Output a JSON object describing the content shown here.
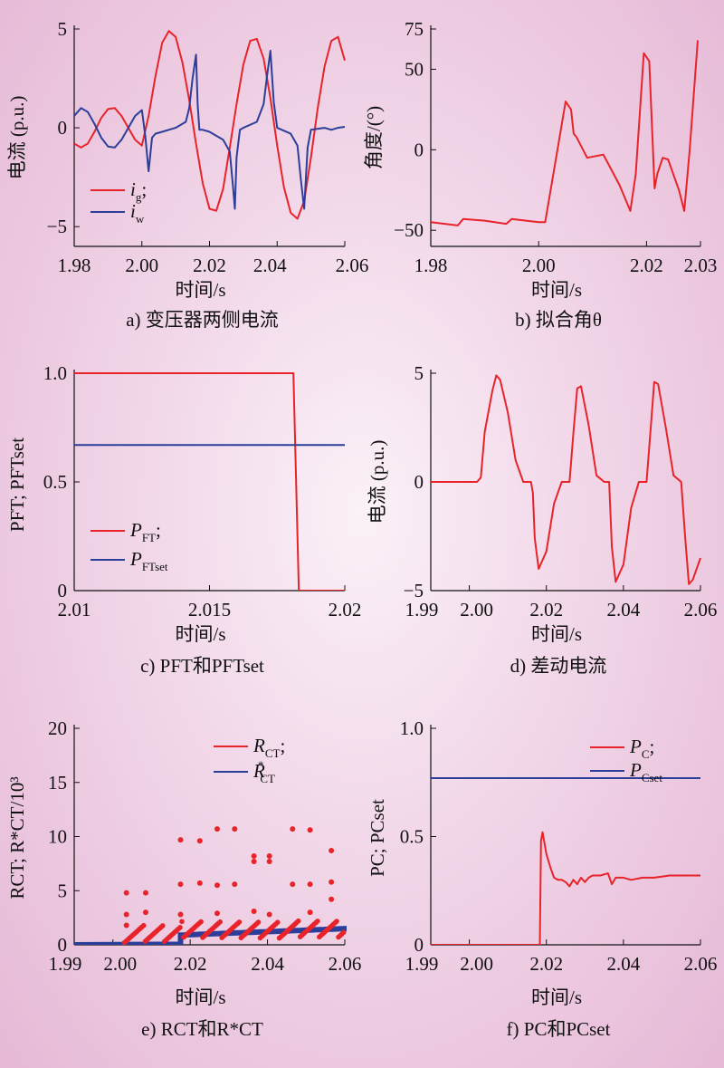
{
  "colors": {
    "red": "#e8232a",
    "blue": "#2b3f9a",
    "axis": "#111111"
  },
  "chart_data": [
    {
      "id": "a",
      "type": "line",
      "caption": "a) 变压器两侧电流",
      "xlabel": "时间/s",
      "ylabel": "电流 (p.u.)",
      "xlim": [
        1.98,
        2.06
      ],
      "ylim": [
        -6,
        5
      ],
      "xticks": [
        1.98,
        2.0,
        2.02,
        2.04,
        2.06
      ],
      "xtick_labels": [
        "1.98",
        "2.00",
        "2.02",
        "2.04",
        "2.06"
      ],
      "yticks": [
        -5,
        0,
        5
      ],
      "ytick_labels": [
        "−5",
        "0",
        "5"
      ],
      "legend": [
        "ig;",
        "iw"
      ],
      "series": [
        {
          "name": "ig;",
          "color": "red",
          "x": [
            1.98,
            1.982,
            1.984,
            1.986,
            1.988,
            1.99,
            1.992,
            1.994,
            1.996,
            1.998,
            2.0,
            2.002,
            2.004,
            2.006,
            2.008,
            2.01,
            2.012,
            2.014,
            2.016,
            2.018,
            2.02,
            2.022,
            2.024,
            2.026,
            2.028,
            2.03,
            2.032,
            2.034,
            2.036,
            2.038,
            2.04,
            2.042,
            2.044,
            2.046,
            2.048,
            2.05,
            2.052,
            2.054,
            2.056,
            2.058,
            2.06
          ],
          "y": [
            -0.8,
            -1.0,
            -0.8,
            -0.2,
            0.5,
            0.95,
            1.0,
            0.6,
            0.0,
            -0.6,
            -0.9,
            0.6,
            2.6,
            4.3,
            4.9,
            4.6,
            3.3,
            1.4,
            -0.8,
            -2.8,
            -4.1,
            -4.2,
            -3.1,
            -1.0,
            1.2,
            3.2,
            4.4,
            4.5,
            3.5,
            1.5,
            -0.9,
            -3.0,
            -4.3,
            -4.6,
            -3.7,
            -1.5,
            1.0,
            3.1,
            4.4,
            4.6,
            3.4
          ]
        },
        {
          "name": "iw",
          "color": "blue",
          "x": [
            1.98,
            1.982,
            1.984,
            1.986,
            1.988,
            1.99,
            1.992,
            1.994,
            1.996,
            1.998,
            2.0,
            2.001,
            2.002,
            2.003,
            2.004,
            2.006,
            2.01,
            2.013,
            2.014,
            2.015,
            2.016,
            2.0165,
            2.017,
            2.018,
            2.02,
            2.024,
            2.026,
            2.027,
            2.0275,
            2.028,
            2.029,
            2.03,
            2.034,
            2.036,
            2.037,
            2.038,
            2.039,
            2.04,
            2.044,
            2.046,
            2.047,
            2.048,
            2.049,
            2.05,
            2.054,
            2.056,
            2.058,
            2.06
          ],
          "y": [
            0.6,
            1.0,
            0.8,
            0.2,
            -0.5,
            -0.95,
            -1.0,
            -0.6,
            0.0,
            0.6,
            0.9,
            -0.4,
            -2.2,
            -0.5,
            -0.3,
            -0.2,
            0.0,
            0.3,
            1.0,
            2.5,
            3.7,
            1.2,
            -0.1,
            -0.1,
            -0.2,
            -0.6,
            -1.2,
            -3.1,
            -4.1,
            -1.5,
            -0.1,
            0.0,
            0.3,
            1.2,
            2.6,
            3.9,
            1.3,
            0.0,
            -0.3,
            -0.9,
            -2.6,
            -4.1,
            -1.0,
            -0.1,
            0.0,
            -0.1,
            0.0,
            0.05
          ]
        }
      ]
    },
    {
      "id": "b",
      "type": "line",
      "caption": "b) 拟合角θ",
      "xlabel": "时间/s",
      "ylabel": "角度/(°)",
      "xlim": [
        1.98,
        2.03
      ],
      "ylim": [
        -60,
        75
      ],
      "xticks": [
        1.98,
        2.0,
        2.02,
        2.03
      ],
      "xtick_labels": [
        "1.98",
        "2.00",
        "2.02",
        "2.03"
      ],
      "yticks": [
        -50,
        0,
        50,
        75
      ],
      "ytick_labels": [
        "−50",
        "0",
        "50",
        "75"
      ],
      "series": [
        {
          "name": "",
          "color": "red",
          "x": [
            1.98,
            1.985,
            1.986,
            1.99,
            1.994,
            1.995,
            2.0,
            2.0012,
            2.004,
            2.005,
            2.006,
            2.0065,
            2.007,
            2.009,
            2.012,
            2.015,
            2.017,
            2.018,
            2.0195,
            2.0205,
            2.0215,
            2.022,
            2.023,
            2.024,
            2.026,
            2.027,
            2.028,
            2.0295
          ],
          "y": [
            -45,
            -47,
            -43,
            -44,
            -46,
            -43,
            -45,
            -45,
            10,
            30,
            25,
            10,
            8,
            -5,
            -3,
            -22,
            -38,
            -15,
            60,
            55,
            -24,
            -15,
            -5,
            -6,
            -25,
            -38,
            0,
            68
          ]
        }
      ]
    },
    {
      "id": "c",
      "type": "line",
      "caption": "c) PFT和PFTset",
      "xlabel": "时间/s",
      "ylabel": "PFT; PFTset",
      "xlim": [
        2.01,
        2.02
      ],
      "ylim": [
        0,
        1.0
      ],
      "xticks": [
        2.01,
        2.015,
        2.02
      ],
      "xtick_labels": [
        "2.01",
        "2.015",
        "2.02"
      ],
      "yticks": [
        0,
        0.5,
        1.0
      ],
      "ytick_labels": [
        "0",
        "0.5",
        "1.0"
      ],
      "legend": [
        "PFT;",
        "PFTset"
      ],
      "series": [
        {
          "name": "PFT;",
          "color": "red",
          "x": [
            2.01,
            2.0181,
            2.0183,
            2.02
          ],
          "y": [
            1.0,
            1.0,
            0.0,
            0.0
          ]
        },
        {
          "name": "PFTset",
          "color": "blue",
          "x": [
            2.01,
            2.02
          ],
          "y": [
            0.67,
            0.67
          ]
        }
      ]
    },
    {
      "id": "d",
      "type": "line",
      "caption": "d) 差动电流",
      "xlabel": "时间/s",
      "ylabel": "电流 (p.u.)",
      "xlim": [
        1.99,
        2.06
      ],
      "ylim": [
        -5,
        5
      ],
      "xticks": [
        1.99,
        2.0,
        2.02,
        2.04,
        2.06
      ],
      "xtick_labels": [
        "1.99",
        "2.00",
        "2.02",
        "2.04",
        "2.06"
      ],
      "yticks": [
        -5,
        0,
        5
      ],
      "ytick_labels": [
        "−5",
        "0",
        "5"
      ],
      "series": [
        {
          "name": "",
          "color": "red",
          "x": [
            1.99,
            2.0,
            2.002,
            2.003,
            2.004,
            2.006,
            2.007,
            2.008,
            2.01,
            2.012,
            2.014,
            2.016,
            2.0165,
            2.017,
            2.018,
            2.02,
            2.022,
            2.024,
            2.026,
            2.027,
            2.028,
            2.029,
            2.031,
            2.033,
            2.035,
            2.0363,
            2.037,
            2.038,
            2.04,
            2.042,
            2.044,
            2.046,
            2.047,
            2.048,
            2.049,
            2.051,
            2.053,
            2.055,
            2.056,
            2.057,
            2.058,
            2.06
          ],
          "y": [
            0,
            0,
            0,
            0.2,
            2.3,
            4.2,
            4.9,
            4.7,
            3.2,
            1.0,
            0.0,
            0.0,
            -0.5,
            -2.6,
            -4.0,
            -3.2,
            -1.0,
            0.0,
            0.0,
            2.2,
            4.3,
            4.4,
            2.6,
            0.3,
            0.0,
            0.0,
            -3.0,
            -4.6,
            -3.8,
            -1.2,
            0.0,
            0.0,
            2.3,
            4.6,
            4.5,
            2.5,
            0.3,
            0.0,
            -2.5,
            -4.7,
            -4.5,
            -3.5
          ]
        }
      ]
    },
    {
      "id": "e",
      "type": "scatter",
      "caption": "e) RCT和R*CT",
      "xlabel": "时间/s",
      "ylabel": "RCT; R*CT/10³",
      "xlim": [
        1.99,
        2.06
      ],
      "ylim": [
        0,
        20
      ],
      "xticks": [
        1.99,
        2.0,
        2.02,
        2.04,
        2.06
      ],
      "xtick_labels": [
        "1.99",
        "2.00",
        "2.02",
        "2.04",
        "2.06"
      ],
      "yticks": [
        0,
        5,
        10,
        15,
        20
      ],
      "ytick_labels": [
        "0",
        "5",
        "10",
        "15",
        "20"
      ],
      "legend": [
        "RCT;",
        "R*CT"
      ],
      "outliers": [
        [
          2.0035,
          4.8
        ],
        [
          2.0035,
          2.8
        ],
        [
          2.0035,
          1.8
        ],
        [
          2.0085,
          4.8
        ],
        [
          2.0085,
          3.0
        ],
        [
          2.0175,
          9.7
        ],
        [
          2.0175,
          5.6
        ],
        [
          2.0175,
          2.8
        ],
        [
          2.0225,
          9.6
        ],
        [
          2.0225,
          5.7
        ],
        [
          2.027,
          10.7
        ],
        [
          2.027,
          5.5
        ],
        [
          2.027,
          2.9
        ],
        [
          2.0315,
          10.7
        ],
        [
          2.0315,
          5.6
        ],
        [
          2.0365,
          8.2
        ],
        [
          2.0365,
          7.7
        ],
        [
          2.0365,
          3.1
        ],
        [
          2.0405,
          8.2
        ],
        [
          2.0405,
          7.7
        ],
        [
          2.0405,
          2.8
        ],
        [
          2.0465,
          10.7
        ],
        [
          2.0465,
          5.6
        ],
        [
          2.051,
          10.6
        ],
        [
          2.051,
          5.6
        ],
        [
          2.051,
          3.0
        ],
        [
          2.0565,
          8.7
        ],
        [
          2.0565,
          5.8
        ],
        [
          2.0565,
          4.2
        ]
      ]
    },
    {
      "id": "f",
      "type": "line",
      "caption": "f) PC和PCset",
      "xlabel": "时间/s",
      "ylabel": "PC; PCset",
      "xlim": [
        1.99,
        2.06
      ],
      "ylim": [
        0,
        1.0
      ],
      "xticks": [
        1.99,
        2.0,
        2.02,
        2.04,
        2.06
      ],
      "xtick_labels": [
        "1.99",
        "2.00",
        "2.02",
        "2.04",
        "2.06"
      ],
      "yticks": [
        0,
        0.5,
        1.0
      ],
      "ytick_labels": [
        "0",
        "0.5",
        "1.0"
      ],
      "legend": [
        "PC;",
        "PCset"
      ],
      "series": [
        {
          "name": "PC;",
          "color": "red",
          "x": [
            1.99,
            2.0183,
            2.0186,
            2.019,
            2.02,
            2.021,
            2.022,
            2.023,
            2.024,
            2.025,
            2.026,
            2.027,
            2.028,
            2.029,
            2.03,
            2.031,
            2.032,
            2.034,
            2.036,
            2.037,
            2.038,
            2.04,
            2.042,
            2.045,
            2.048,
            2.052,
            2.056,
            2.06
          ],
          "y": [
            0,
            0,
            0.48,
            0.52,
            0.42,
            0.36,
            0.31,
            0.3,
            0.3,
            0.29,
            0.27,
            0.3,
            0.28,
            0.31,
            0.29,
            0.31,
            0.32,
            0.32,
            0.33,
            0.28,
            0.31,
            0.31,
            0.3,
            0.31,
            0.31,
            0.32,
            0.32,
            0.32
          ]
        },
        {
          "name": "PCset",
          "color": "blue",
          "x": [
            1.99,
            2.06
          ],
          "y": [
            0.77,
            0.77
          ]
        }
      ]
    }
  ]
}
